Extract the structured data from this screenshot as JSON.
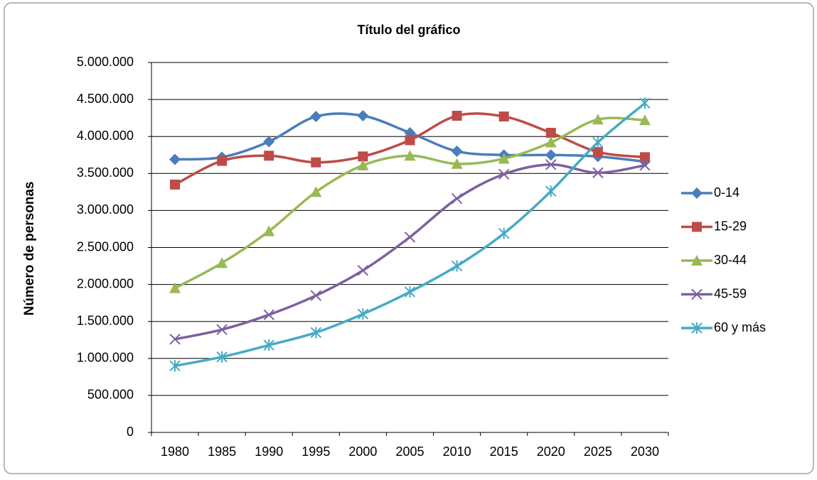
{
  "chart_data": {
    "type": "line",
    "title": "Título del gráfico",
    "y_label": "Número de personas",
    "categories": [
      "1980",
      "1985",
      "1990",
      "1995",
      "2000",
      "2005",
      "2010",
      "2015",
      "2020",
      "2025",
      "2030"
    ],
    "series": [
      {
        "name": "0-14",
        "color": "#4a7ebb",
        "marker": "diamond",
        "values": [
          3690000,
          3720000,
          3930000,
          4270000,
          4280000,
          4050000,
          3800000,
          3750000,
          3750000,
          3730000,
          3660000
        ]
      },
      {
        "name": "15-29",
        "color": "#be4b48",
        "marker": "square",
        "values": [
          3350000,
          3670000,
          3740000,
          3650000,
          3730000,
          3950000,
          4280000,
          4270000,
          4050000,
          3790000,
          3720000
        ]
      },
      {
        "name": "30-44",
        "color": "#98b954",
        "marker": "triangle",
        "values": [
          1950000,
          2290000,
          2720000,
          3250000,
          3610000,
          3740000,
          3630000,
          3700000,
          3920000,
          4230000,
          4220000
        ]
      },
      {
        "name": "45-59",
        "color": "#7d60a0",
        "marker": "x",
        "values": [
          1260000,
          1390000,
          1590000,
          1850000,
          2190000,
          2640000,
          3160000,
          3490000,
          3620000,
          3510000,
          3610000
        ]
      },
      {
        "name": "60 y más",
        "color": "#46aac5",
        "marker": "star",
        "values": [
          900000,
          1020000,
          1180000,
          1350000,
          1600000,
          1900000,
          2250000,
          2690000,
          3260000,
          3920000,
          4450000
        ]
      }
    ],
    "ylim": [
      0,
      5000000
    ],
    "yticks": [
      0,
      {
        "value": 500000,
        "label": "500.000"
      },
      {
        "value": 1000000,
        "label": "1.000.000"
      },
      {
        "value": 1500000,
        "label": "1.500.000"
      },
      {
        "value": 2000000,
        "label": "2.000.000"
      },
      {
        "value": 2500000,
        "label": "2.500.000"
      },
      {
        "value": 3000000,
        "label": "3.000.000"
      },
      {
        "value": 3500000,
        "label": "3.500.000"
      },
      {
        "value": 4000000,
        "label": "4.000.000"
      },
      {
        "value": 4500000,
        "label": "4.500.000"
      },
      {
        "value": 5000000,
        "label": "5.000.000"
      }
    ],
    "grid": true,
    "smooth": true,
    "legend": "right"
  }
}
